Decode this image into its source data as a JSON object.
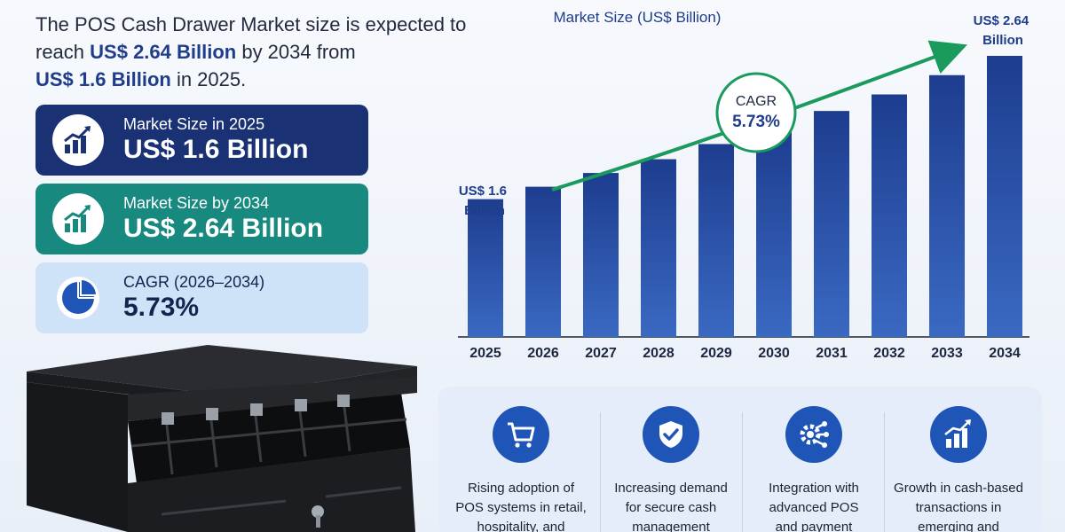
{
  "headline": {
    "part1": "The POS Cash Drawer Market size is expected to reach ",
    "highlight1": "US$ 2.64 Billion",
    "part2": " by 2034 from ",
    "highlight2": "US$ 1.6 Billion",
    "part3": " in 2025."
  },
  "cards": [
    {
      "label": "Market Size in 2025",
      "value": "US$ 1.6 Billion",
      "icon": "growth-chart-icon"
    },
    {
      "label": "Market Size by 2034",
      "value": "US$ 2.64 Billion",
      "icon": "growth-chart-icon"
    },
    {
      "label": "CAGR (2026–2034)",
      "value": "5.73%",
      "icon": "pie-chart-icon"
    }
  ],
  "colors": {
    "navy": "#1a3274",
    "teal": "#17897f",
    "light_blue": "#cfe3f8",
    "bar_top": "#1d3d8f",
    "bar_bottom": "#3a69c2",
    "arrow_green": "#1a9a5c",
    "icon_blue": "#1f55b6"
  },
  "chart_data": {
    "type": "bar",
    "title": "Market Size (US$ Billion)",
    "categories": [
      "2025",
      "2026",
      "2027",
      "2028",
      "2029",
      "2030",
      "2031",
      "2032",
      "2033",
      "2034"
    ],
    "values": [
      1.6,
      1.69,
      1.79,
      1.89,
      2.0,
      2.11,
      2.24,
      2.36,
      2.5,
      2.64
    ],
    "start_label": [
      "US$ 1.6",
      "Billion"
    ],
    "end_label": [
      "US$ 2.64",
      "Billion"
    ],
    "cagr_label": "CAGR",
    "cagr_value": "5.73%",
    "grid": false,
    "value_axis": false
  },
  "features": [
    {
      "lines": [
        "Rising adoption of",
        "POS systems in retail,",
        "hospitality, and"
      ],
      "icon": "shopping-cart-icon"
    },
    {
      "lines": [
        "Increasing demand",
        "for secure cash",
        "management"
      ],
      "icon": "shield-check-icon"
    },
    {
      "lines": [
        "Integration with",
        "advanced POS",
        "and payment"
      ],
      "icon": "gear-network-icon"
    },
    {
      "lines": [
        "Growth in cash-based",
        "transactions in",
        "emerging and"
      ],
      "icon": "bar-growth-icon"
    }
  ]
}
